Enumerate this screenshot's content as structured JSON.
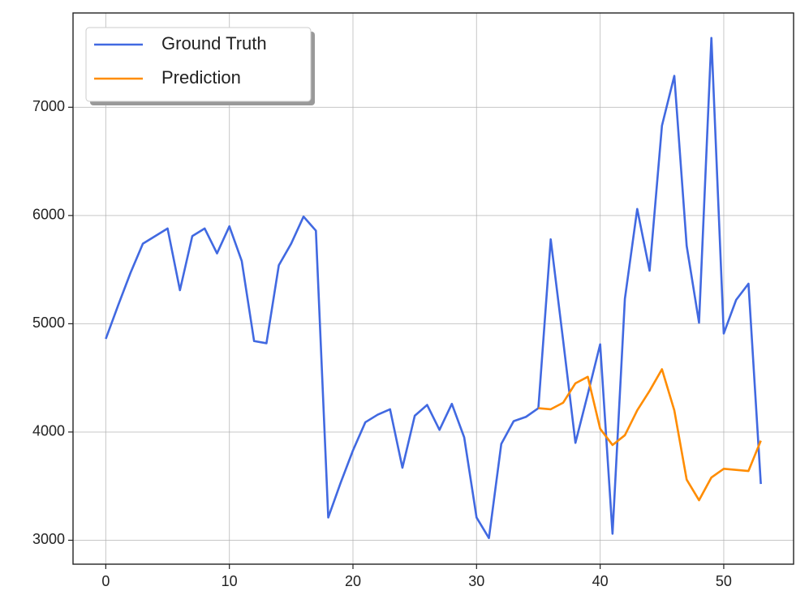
{
  "chart_data": {
    "type": "line",
    "x": [
      0,
      1,
      2,
      3,
      4,
      5,
      6,
      7,
      8,
      9,
      10,
      11,
      12,
      13,
      14,
      15,
      16,
      17,
      18,
      19,
      20,
      21,
      22,
      23,
      24,
      25,
      26,
      27,
      28,
      29,
      30,
      31,
      32,
      33,
      34,
      35,
      36,
      37,
      38,
      39,
      40,
      41,
      42,
      43,
      44,
      45,
      46,
      47,
      48,
      49,
      50,
      51,
      52,
      53
    ],
    "series": [
      {
        "name": "Ground Truth",
        "color": "#4169e1",
        "values": [
          4860,
          5170,
          5470,
          5740,
          5810,
          5880,
          5310,
          5810,
          5880,
          5650,
          5900,
          5580,
          4840,
          4820,
          5540,
          5740,
          5990,
          5860,
          3210,
          3530,
          3830,
          4090,
          4160,
          4210,
          3670,
          4150,
          4250,
          4020,
          4260,
          3950,
          3210,
          3020,
          3890,
          4100,
          4140,
          4220,
          5780,
          4850,
          3900,
          4350,
          4810,
          3060,
          5230,
          6060,
          5490,
          6830,
          7290,
          5720,
          5010,
          7640,
          4910,
          5220,
          5370,
          3520
        ]
      },
      {
        "name": "Prediction",
        "color": "#ff8c00",
        "values": [
          null,
          null,
          null,
          null,
          null,
          null,
          null,
          null,
          null,
          null,
          null,
          null,
          null,
          null,
          null,
          null,
          null,
          null,
          null,
          null,
          null,
          null,
          null,
          null,
          null,
          null,
          null,
          null,
          null,
          null,
          null,
          null,
          null,
          null,
          null,
          4220,
          4210,
          4270,
          4450,
          4510,
          4030,
          3880,
          3970,
          4200,
          4380,
          4580,
          4200,
          3560,
          3370,
          3580,
          3660,
          3650,
          3640,
          3920
        ]
      }
    ],
    "xlim": [
      -2.65,
      55.65
    ],
    "xticks": [
      0,
      10,
      20,
      30,
      40,
      50
    ],
    "ylim": [
      2779,
      7871
    ],
    "yticks": [
      3000,
      4000,
      5000,
      6000,
      7000
    ],
    "grid": true,
    "legend": "upper-left"
  }
}
